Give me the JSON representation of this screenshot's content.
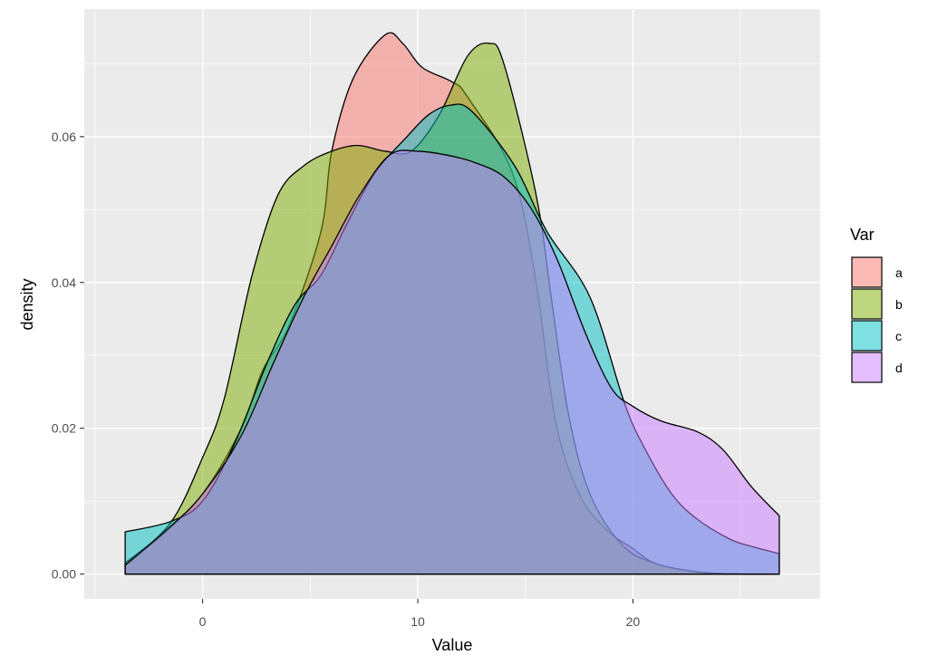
{
  "chart_data": {
    "type": "area",
    "xlabel": "Value",
    "ylabel": "density",
    "xlim": [
      -5.5,
      28.7
    ],
    "ylim": [
      -0.0034,
      0.0775
    ],
    "x_ticks": [
      0,
      10,
      20
    ],
    "y_ticks": [
      0.0,
      0.02,
      0.04,
      0.06
    ],
    "x_tick_labels": [
      "0",
      "10",
      "20"
    ],
    "y_tick_labels": [
      "0.00",
      "0.02",
      "0.04",
      "0.06"
    ],
    "grid": true,
    "legend": {
      "title": "Var",
      "position": "right"
    },
    "series": [
      {
        "name": "a",
        "color": "#F8766D",
        "x": [
          -3.6,
          -2,
          0,
          1.8,
          2.8,
          4,
          5.5,
          6,
          7,
          8.5,
          9.3,
          10.2,
          11.6,
          12.3,
          14.4,
          15.5,
          16.4,
          17.5,
          18.8,
          20,
          21,
          22.5,
          24,
          26.8
        ],
        "y": [
          0.0015,
          0.005,
          0.011,
          0.02,
          0.028,
          0.034,
          0.047,
          0.058,
          0.068,
          0.074,
          0.0728,
          0.0695,
          0.0675,
          0.0655,
          0.055,
          0.04,
          0.021,
          0.011,
          0.006,
          0.0035,
          0.0015,
          0.0005,
          0.0001,
          0.0
        ]
      },
      {
        "name": "b",
        "color": "#7CAE00",
        "x": [
          -3.6,
          -1.5,
          0,
          1,
          2.3,
          3.5,
          4.7,
          6,
          7.2,
          8.5,
          9.7,
          11,
          12.3,
          13.3,
          14,
          15.5,
          16.2,
          17,
          18,
          19.5,
          21,
          23,
          25,
          26.8
        ],
        "y": [
          0.0015,
          0.007,
          0.016,
          0.024,
          0.041,
          0.052,
          0.056,
          0.058,
          0.0588,
          0.058,
          0.058,
          0.063,
          0.071,
          0.0728,
          0.07,
          0.052,
          0.038,
          0.022,
          0.011,
          0.004,
          0.0015,
          0.0003,
          0.0,
          0.0
        ]
      },
      {
        "name": "c",
        "color": "#00BFC4",
        "x": [
          -3.6,
          -1.5,
          0,
          1.5,
          3,
          4.3,
          5.5,
          6.7,
          8,
          9.5,
          10.5,
          11.5,
          12.5,
          14.5,
          16,
          18,
          19.6,
          20.5,
          21.8,
          23,
          24.5,
          25.5,
          26.8
        ],
        "y": [
          0.0058,
          0.0072,
          0.01,
          0.018,
          0.029,
          0.037,
          0.041,
          0.048,
          0.055,
          0.06,
          0.063,
          0.0643,
          0.0635,
          0.056,
          0.047,
          0.038,
          0.0235,
          0.0175,
          0.011,
          0.0075,
          0.0048,
          0.0038,
          0.0028
        ]
      },
      {
        "name": "d",
        "color": "#C77CFF",
        "x": [
          -3.6,
          -1.5,
          0,
          1.8,
          3.3,
          4.7,
          6,
          7.3,
          8.7,
          10,
          11.3,
          12.6,
          14,
          15.3,
          16.5,
          17.8,
          19,
          20,
          21.3,
          23,
          24.2,
          25.5,
          26.8
        ],
        "y": [
          0.0012,
          0.0065,
          0.011,
          0.019,
          0.029,
          0.038,
          0.045,
          0.052,
          0.0575,
          0.058,
          0.0575,
          0.0565,
          0.0545,
          0.05,
          0.043,
          0.033,
          0.0255,
          0.023,
          0.021,
          0.0195,
          0.017,
          0.012,
          0.008
        ]
      }
    ]
  }
}
